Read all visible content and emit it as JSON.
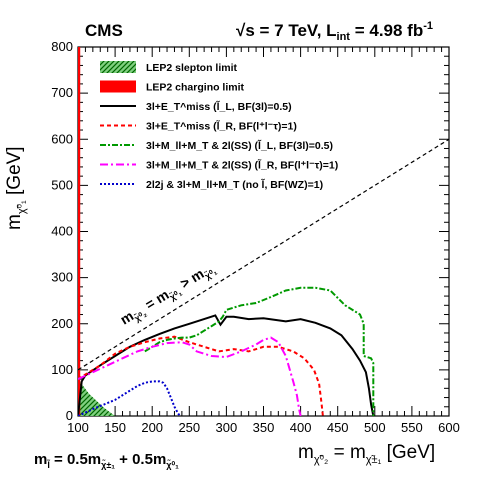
{
  "chart_data": {
    "type": "line",
    "experiment": "CMS",
    "energy_text": "√s = 7 TeV, L",
    "lumi_sub": "int",
    "lumi_val": " = 4.98 fb",
    "lumi_exp": "-1",
    "ylabel": "m",
    "ylabel_sub": "χ̃⁰₁",
    "ylabel_unit": " [GeV]",
    "xlabel": "m",
    "xlabel_sub1": "χ̃⁰₂",
    "xlabel_mid": " = m",
    "xlabel_sub2": "χ̃±₁",
    "xlabel_unit": " [GeV]",
    "bottom_formula": "m",
    "bottom_formula_sub0": "l̃",
    "bottom_formula_a": " = 0.5m",
    "bottom_formula_sub1": "χ̃±₁",
    "bottom_formula_b": " + 0.5m",
    "bottom_formula_sub2": "χ̃⁰₁",
    "diagonal_label": "m",
    "diagonal_sub1": "χ̃⁰₂",
    "diagonal_mid": " = m",
    "diagonal_sub2": "χ̃⁰₁",
    "diagonal_gt": " > m",
    "xlim": [
      100,
      600
    ],
    "ylim": [
      0,
      800
    ],
    "xticks": [
      "100",
      "150",
      "200",
      "250",
      "300",
      "350",
      "400",
      "450",
      "500",
      "550",
      "600"
    ],
    "yticks": [
      "0",
      "100",
      "200",
      "300",
      "400",
      "500",
      "600",
      "700",
      "800"
    ],
    "legend": [
      {
        "label": "LEP2 slepton limit",
        "kind": "hatch",
        "color": "#1a9a1a"
      },
      {
        "label": "LEP2 chargino limit",
        "kind": "fill",
        "color": "#ff0000"
      },
      {
        "label": "3l+E_T^miss (l̃_L, BF(3l)=0.5)",
        "kind": "line",
        "color": "#000000",
        "dash": ""
      },
      {
        "label": "3l+E_T^miss (l̃_R, BF(l⁺l⁻τ)=1)",
        "kind": "line",
        "color": "#ff0000",
        "dash": "4,3"
      },
      {
        "label": "3l+M_ll+M_T & 2l(SS) (l̃_L, BF(3l)=0.5)",
        "kind": "line",
        "color": "#009900",
        "dash": "6,2,2,2"
      },
      {
        "label": "3l+M_ll+M_T & 2l(SS) (l̃_R, BF(l⁺l⁻τ)=1)",
        "kind": "line",
        "color": "#ff00ff",
        "dash": "8,3,2,3"
      },
      {
        "label": "2l2j & 3l+M_ll+M_T (no l̃, BF(WZ)=1)",
        "kind": "line",
        "color": "#0000cc",
        "dash": "2,2"
      }
    ],
    "series": [
      {
        "name": "3l+E_T^miss (l̃_L, BF(3l)=0.5)",
        "color": "#000000",
        "dash": "",
        "width": 2,
        "x": [
          100,
          105,
          110,
          130,
          150,
          170,
          190,
          210,
          230,
          250,
          270,
          285,
          292,
          300,
          310,
          330,
          350,
          380,
          400,
          420,
          440,
          455,
          470,
          480,
          488,
          492,
          495,
          498
        ],
        "y": [
          0,
          75,
          88,
          110,
          130,
          150,
          165,
          178,
          190,
          200,
          210,
          218,
          198,
          215,
          215,
          210,
          212,
          205,
          210,
          202,
          190,
          175,
          145,
          120,
          95,
          60,
          25,
          0
        ]
      },
      {
        "name": "3l+E_T^miss (l̃_R, BF(l⁺l⁻τ)=1)",
        "color": "#ff0000",
        "dash": "4,3",
        "width": 2,
        "x": [
          100,
          110,
          130,
          150,
          170,
          190,
          210,
          230,
          250,
          270,
          290,
          310,
          330,
          350,
          370,
          390,
          405,
          418,
          425,
          428,
          430
        ],
        "y": [
          80,
          90,
          110,
          135,
          150,
          160,
          168,
          172,
          160,
          150,
          140,
          145,
          140,
          150,
          150,
          140,
          125,
          100,
          70,
          30,
          0
        ]
      },
      {
        "name": "3l+M_ll+M_T & 2l(SS) (l̃_L, BF(3l)=0.5)",
        "color": "#009900",
        "dash": "6,2,2,2",
        "width": 2,
        "x": [
          190,
          200,
          210,
          220,
          230,
          240,
          250,
          260,
          270,
          280,
          290,
          295,
          300,
          320,
          340,
          360,
          380,
          400,
          420,
          440,
          460,
          480,
          485,
          485,
          495,
          498,
          498
        ],
        "y": [
          140,
          150,
          160,
          165,
          168,
          170,
          170,
          175,
          185,
          195,
          205,
          215,
          230,
          240,
          245,
          258,
          272,
          278,
          278,
          272,
          240,
          220,
          200,
          130,
          125,
          115,
          0
        ]
      },
      {
        "name": "3l+M_ll+M_T & 2l(SS) (l̃_R, BF(l⁺l⁻τ)=1)",
        "color": "#ff00ff",
        "dash": "8,3,2,3",
        "width": 2,
        "x": [
          100,
          120,
          140,
          160,
          180,
          200,
          220,
          240,
          250,
          260,
          280,
          300,
          320,
          340,
          350,
          360,
          370,
          380,
          390,
          395,
          398,
          400
        ],
        "y": [
          80,
          95,
          110,
          125,
          140,
          150,
          158,
          160,
          155,
          140,
          130,
          128,
          140,
          155,
          165,
          170,
          160,
          130,
          75,
          45,
          15,
          0
        ]
      },
      {
        "name": "2l2j & 3l+M_ll+M_T (no l̃, BF(WZ)=1)",
        "color": "#0000cc",
        "dash": "2,2",
        "width": 2,
        "x": [
          100,
          120,
          150,
          170,
          180,
          190,
          200,
          210,
          215,
          220,
          225,
          230,
          235,
          238
        ],
        "y": [
          0,
          15,
          35,
          55,
          65,
          72,
          75,
          75,
          72,
          60,
          40,
          20,
          5,
          0
        ]
      }
    ],
    "lep2_slepton_region": {
      "x": [
        100,
        100,
        115,
        135,
        150,
        100
      ],
      "y": [
        0,
        80,
        48,
        18,
        0,
        0
      ]
    },
    "lep2_chargino_x": [
      100,
      103
    ]
  }
}
